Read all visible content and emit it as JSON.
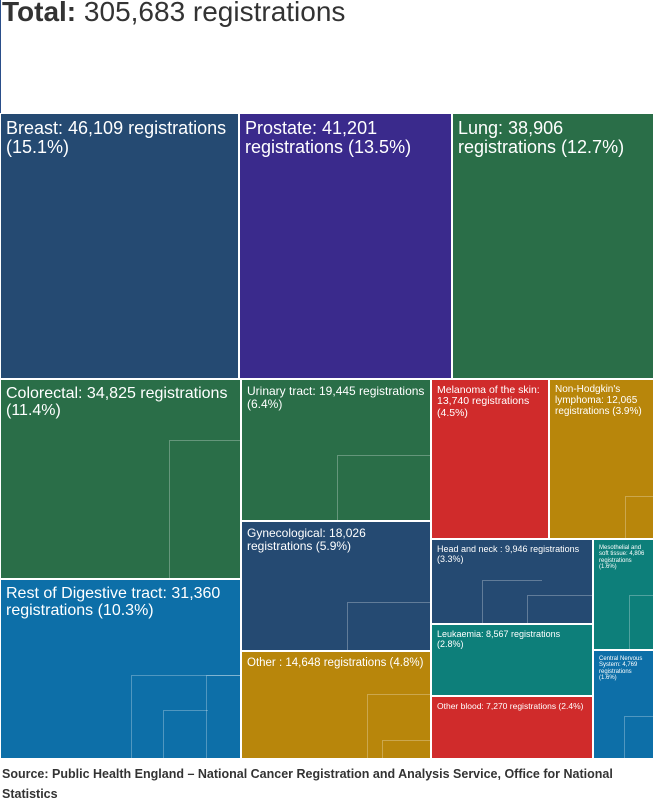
{
  "header": {
    "title_bold": "Total:",
    "title_rest": "305,683 registrations"
  },
  "chart_data": {
    "type": "treemap",
    "title": "Total: 305,683 registrations",
    "total": 305683,
    "unit": "registrations",
    "items": [
      {
        "name": "Breast",
        "value": 46109,
        "percent": 15.1,
        "color": "#254a72",
        "label": "Breast: 46,109 registrations (15.1%)"
      },
      {
        "name": "Prostate",
        "value": 41201,
        "percent": 13.5,
        "color": "#3a2a8c",
        "label": "Prostate: 41,201 registrations (13.5%)"
      },
      {
        "name": "Lung",
        "value": 38906,
        "percent": 12.7,
        "color": "#2a6e48",
        "label": "Lung: 38,906 registrations (12.7%)"
      },
      {
        "name": "Colorectal",
        "value": 34825,
        "percent": 11.4,
        "color": "#2a6e48",
        "label": "Colorectal: 34,825 registrations (11.4%)"
      },
      {
        "name": "Rest of Digestive tract",
        "value": 31360,
        "percent": 10.3,
        "color": "#0d6fa8",
        "label": "Rest of Digestive tract: 31,360 registrations (10.3%)"
      },
      {
        "name": "Urinary tract",
        "value": 19445,
        "percent": 6.4,
        "color": "#2a6e48",
        "label": "Urinary tract: 19,445 registrations (6.4%)"
      },
      {
        "name": "Gynecological",
        "value": 18026,
        "percent": 5.9,
        "color": "#254a72",
        "label": "Gynecological: 18,026 registrations (5.9%)"
      },
      {
        "name": "Other",
        "value": 14648,
        "percent": 4.8,
        "color": "#b8860b",
        "label": "Other : 14,648 registrations (4.8%)"
      },
      {
        "name": "Melanoma of the skin",
        "value": 13740,
        "percent": 4.5,
        "color": "#d02b2b",
        "label": "Melanoma of the skin: 13,740 registrations (4.5%)"
      },
      {
        "name": "Non-Hodgkin's lymphoma",
        "value": 12065,
        "percent": 3.9,
        "color": "#b8860b",
        "label": "Non-Hodgkin's lymphoma: 12,065 registrations (3.9%)"
      },
      {
        "name": "Head and neck",
        "value": 9946,
        "percent": 3.3,
        "color": "#254a72",
        "label": "Head and neck : 9,946 registrations (3.3%)"
      },
      {
        "name": "Leukaemia",
        "value": 8567,
        "percent": 2.8,
        "color": "#0d7f7a",
        "label": "Leukaemia: 8,567 registrations (2.8%)"
      },
      {
        "name": "Other blood",
        "value": 7270,
        "percent": 2.4,
        "color": "#d02b2b",
        "label": "Other blood: 7,270 registrations (2.4%)"
      },
      {
        "name": "Mesothelial and soft tissue",
        "value": 4806,
        "percent": 1.6,
        "color": "#0d7f7a",
        "label": "Mesothelial and soft tissue: 4,806 registrations (1.6%)"
      },
      {
        "name": "Central Nervous System",
        "value": 4769,
        "percent": 1.6,
        "color": "#0d6fa8",
        "label": "Central Nervous System: 4,769 registrations (1.6%)"
      }
    ]
  },
  "footer": {
    "source": "Source: Public Health England – National Cancer Registration and Analysis Service, Office for National Statistics"
  }
}
